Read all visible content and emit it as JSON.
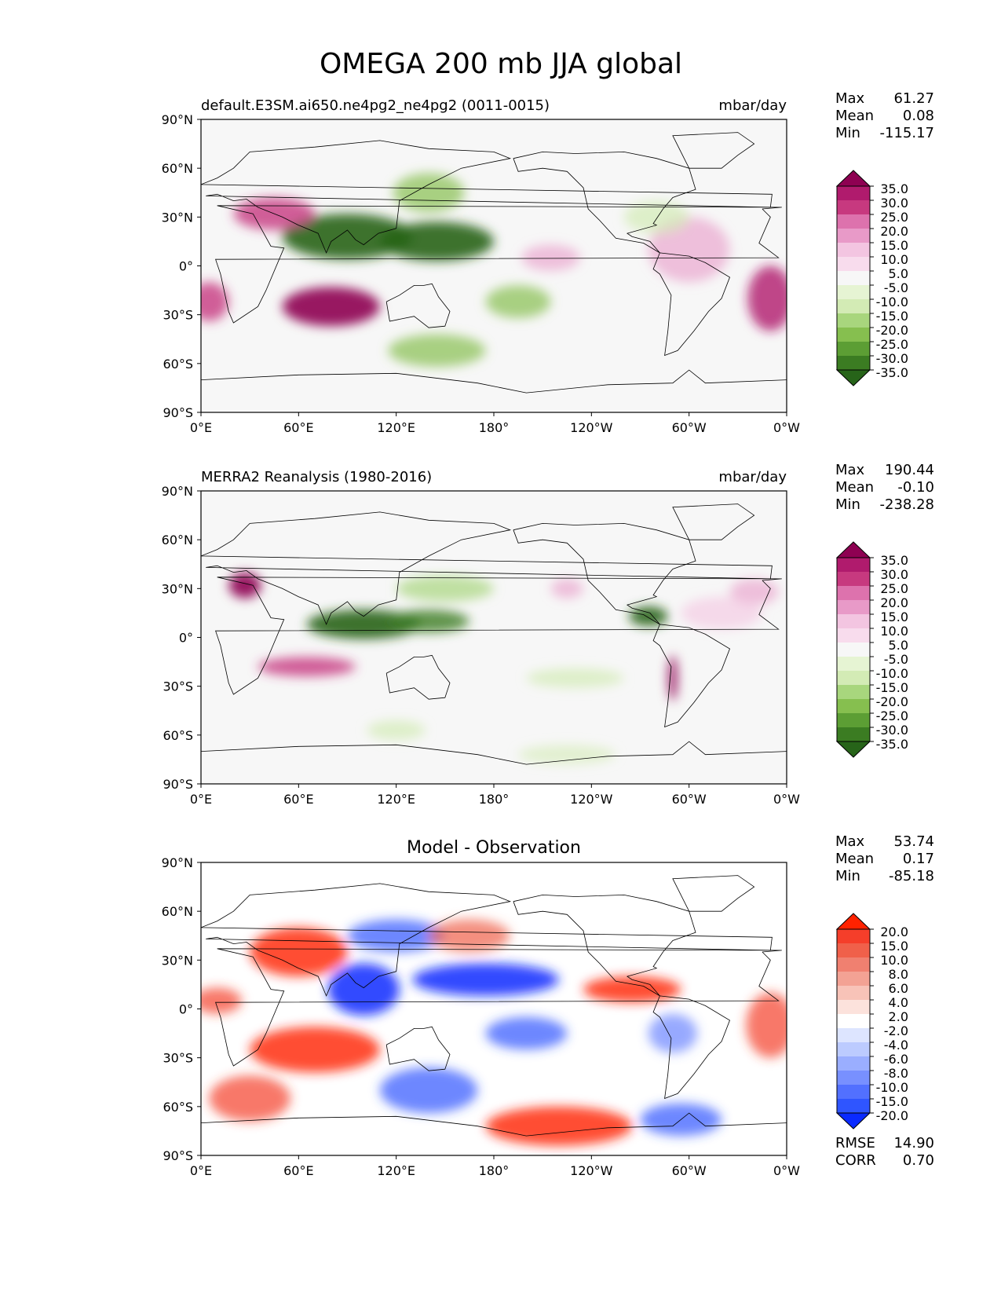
{
  "title": "OMEGA 200 mb JJA global",
  "chart_data": [
    {
      "type": "heatmap",
      "panel": "test",
      "left_title": "default.E3SM.ai650.ne4pg2_ne4pg2 (0011-0015)",
      "right_title": "mbar/day",
      "center_title": "",
      "stats": [
        {
          "label": "Max",
          "value": "61.27"
        },
        {
          "label": "Mean",
          "value": "0.08"
        },
        {
          "label": "Min",
          "value": "-115.17"
        }
      ],
      "extra_stats": [],
      "colorbar": {
        "levels": [
          "35.0",
          "30.0",
          "25.0",
          "20.0",
          "15.0",
          "10.0",
          "5.0",
          "-5.0",
          "-10.0",
          "-15.0",
          "-20.0",
          "-25.0",
          "-30.0",
          "-35.0"
        ],
        "colors": [
          "#8e0152",
          "#b01b6d",
          "#c7397f",
          "#dd72ad",
          "#e89ac8",
          "#f3c5e1",
          "#f8dced",
          "#f7f7f7",
          "#e6f4d3",
          "#d3ebb5",
          "#a8d67d",
          "#86bf4f",
          "#5c9e34",
          "#3b7c22",
          "#276419"
        ],
        "extend": "both"
      },
      "x_ticks": [
        "0°E",
        "60°E",
        "120°E",
        "180°",
        "120°W",
        "60°W",
        "0°W"
      ],
      "y_ticks": [
        "90°N",
        "60°N",
        "30°N",
        "0°",
        "30°S",
        "60°S",
        "90°S"
      ],
      "xlim": [
        0,
        360
      ],
      "ylim": [
        -90,
        90
      ],
      "features": [
        {
          "lon": 90,
          "lat": 18,
          "rx": 40,
          "ry": 14,
          "color": "#276419",
          "opacity": 0.9
        },
        {
          "lon": 145,
          "lat": 15,
          "rx": 35,
          "ry": 12,
          "color": "#276419",
          "opacity": 0.9
        },
        {
          "lon": 140,
          "lat": 45,
          "rx": 22,
          "ry": 12,
          "color": "#86bf4f",
          "opacity": 0.7
        },
        {
          "lon": 195,
          "lat": -22,
          "rx": 20,
          "ry": 10,
          "color": "#86bf4f",
          "opacity": 0.7
        },
        {
          "lon": 145,
          "lat": -52,
          "rx": 30,
          "ry": 10,
          "color": "#86bf4f",
          "opacity": 0.7
        },
        {
          "lon": 80,
          "lat": -25,
          "rx": 30,
          "ry": 12,
          "color": "#8e0152",
          "opacity": 0.9
        },
        {
          "lon": 45,
          "lat": 32,
          "rx": 25,
          "ry": 10,
          "color": "#c7397f",
          "opacity": 0.8
        },
        {
          "lon": 5,
          "lat": -22,
          "rx": 12,
          "ry": 12,
          "color": "#c7397f",
          "opacity": 0.8
        },
        {
          "lon": 350,
          "lat": -20,
          "rx": 14,
          "ry": 20,
          "color": "#b01b6d",
          "opacity": 0.8
        },
        {
          "lon": 300,
          "lat": 10,
          "rx": 25,
          "ry": 20,
          "color": "#e89ac8",
          "opacity": 0.6
        },
        {
          "lon": 215,
          "lat": 5,
          "rx": 18,
          "ry": 8,
          "color": "#e89ac8",
          "opacity": 0.6
        },
        {
          "lon": 280,
          "lat": 30,
          "rx": 20,
          "ry": 10,
          "color": "#d3ebb5",
          "opacity": 0.7
        }
      ]
    },
    {
      "type": "heatmap",
      "panel": "reference",
      "left_title": "MERRA2 Reanalysis (1980-2016)",
      "right_title": "mbar/day",
      "center_title": "",
      "stats": [
        {
          "label": "Max",
          "value": "190.44"
        },
        {
          "label": "Mean",
          "value": "-0.10"
        },
        {
          "label": "Min",
          "value": "-238.28"
        }
      ],
      "extra_stats": [],
      "colorbar": {
        "levels": [
          "35.0",
          "30.0",
          "25.0",
          "20.0",
          "15.0",
          "10.0",
          "5.0",
          "-5.0",
          "-10.0",
          "-15.0",
          "-20.0",
          "-25.0",
          "-30.0",
          "-35.0"
        ],
        "colors": [
          "#8e0152",
          "#b01b6d",
          "#c7397f",
          "#dd72ad",
          "#e89ac8",
          "#f3c5e1",
          "#f8dced",
          "#f7f7f7",
          "#e6f4d3",
          "#d3ebb5",
          "#a8d67d",
          "#86bf4f",
          "#5c9e34",
          "#3b7c22",
          "#276419"
        ],
        "extend": "both"
      },
      "x_ticks": [
        "0°E",
        "60°E",
        "120°E",
        "180°",
        "120°W",
        "60°W",
        "0°W"
      ],
      "y_ticks": [
        "90°N",
        "60°N",
        "30°N",
        "0°",
        "30°S",
        "60°S",
        "90°S"
      ],
      "xlim": [
        0,
        360
      ],
      "ylim": [
        -90,
        90
      ],
      "features": [
        {
          "lon": 100,
          "lat": 8,
          "rx": 35,
          "ry": 9,
          "color": "#276419",
          "opacity": 0.9
        },
        {
          "lon": 140,
          "lat": 10,
          "rx": 25,
          "ry": 7,
          "color": "#3b7c22",
          "opacity": 0.8
        },
        {
          "lon": 150,
          "lat": 30,
          "rx": 30,
          "ry": 8,
          "color": "#a8d67d",
          "opacity": 0.7
        },
        {
          "lon": 275,
          "lat": 13,
          "rx": 12,
          "ry": 6,
          "color": "#276419",
          "opacity": 0.9
        },
        {
          "lon": 27,
          "lat": 32,
          "rx": 10,
          "ry": 8,
          "color": "#8e0152",
          "opacity": 0.9
        },
        {
          "lon": 65,
          "lat": -18,
          "rx": 30,
          "ry": 6,
          "color": "#c7397f",
          "opacity": 0.8
        },
        {
          "lon": 290,
          "lat": -25,
          "rx": 3,
          "ry": 14,
          "color": "#8e0152",
          "opacity": 0.8
        },
        {
          "lon": 230,
          "lat": -25,
          "rx": 30,
          "ry": 6,
          "color": "#d3ebb5",
          "opacity": 0.7
        },
        {
          "lon": 120,
          "lat": -57,
          "rx": 18,
          "ry": 6,
          "color": "#d3ebb5",
          "opacity": 0.7
        },
        {
          "lon": 225,
          "lat": -72,
          "rx": 30,
          "ry": 6,
          "color": "#d3ebb5",
          "opacity": 0.6
        },
        {
          "lon": 225,
          "lat": 30,
          "rx": 10,
          "ry": 6,
          "color": "#e89ac8",
          "opacity": 0.6
        },
        {
          "lon": 340,
          "lat": 28,
          "rx": 15,
          "ry": 8,
          "color": "#e89ac8",
          "opacity": 0.6
        },
        {
          "lon": 320,
          "lat": 15,
          "rx": 25,
          "ry": 10,
          "color": "#f3c5e1",
          "opacity": 0.6
        }
      ]
    },
    {
      "type": "heatmap",
      "panel": "difference",
      "left_title": "",
      "right_title": "",
      "center_title": "Model - Observation",
      "stats": [
        {
          "label": "Max",
          "value": "53.74"
        },
        {
          "label": "Mean",
          "value": "0.17"
        },
        {
          "label": "Min",
          "value": "-85.18"
        }
      ],
      "extra_stats": [
        {
          "label": "RMSE",
          "value": "14.90"
        },
        {
          "label": "CORR",
          "value": "0.70"
        }
      ],
      "colorbar": {
        "levels": [
          "20.0",
          "15.0",
          "10.0",
          "8.0",
          "6.0",
          "4.0",
          "2.0",
          "-2.0",
          "-4.0",
          "-6.0",
          "-8.0",
          "-10.0",
          "-15.0",
          "-20.0"
        ],
        "colors": [
          "#ff2200",
          "#f53e2a",
          "#f0604a",
          "#f08070",
          "#f3a294",
          "#f8c3b8",
          "#fce2dc",
          "#ffffff",
          "#dde5ff",
          "#bccbff",
          "#9aaeff",
          "#7890ff",
          "#5270ff",
          "#2f55ff",
          "#0a2aff"
        ],
        "extend": "both"
      },
      "x_ticks": [
        "0°E",
        "60°E",
        "120°E",
        "180°",
        "120°W",
        "60°W",
        "0°W"
      ],
      "y_ticks": [
        "90°N",
        "60°N",
        "30°N",
        "0°",
        "30°S",
        "60°S",
        "90°S"
      ],
      "xlim": [
        0,
        360
      ],
      "ylim": [
        -90,
        90
      ],
      "features": [
        {
          "lon": 100,
          "lat": 12,
          "rx": 22,
          "ry": 16,
          "color": "#0a2aff",
          "opacity": 0.85
        },
        {
          "lon": 175,
          "lat": 18,
          "rx": 45,
          "ry": 10,
          "color": "#0a2aff",
          "opacity": 0.85
        },
        {
          "lon": 120,
          "lat": 45,
          "rx": 30,
          "ry": 10,
          "color": "#2f55ff",
          "opacity": 0.7
        },
        {
          "lon": 200,
          "lat": -15,
          "rx": 25,
          "ry": 10,
          "color": "#2f55ff",
          "opacity": 0.7
        },
        {
          "lon": 140,
          "lat": -50,
          "rx": 30,
          "ry": 14,
          "color": "#2f55ff",
          "opacity": 0.7
        },
        {
          "lon": 295,
          "lat": -68,
          "rx": 25,
          "ry": 10,
          "color": "#2f55ff",
          "opacity": 0.7
        },
        {
          "lon": 290,
          "lat": -15,
          "rx": 15,
          "ry": 12,
          "color": "#5270ff",
          "opacity": 0.6
        },
        {
          "lon": 60,
          "lat": 35,
          "rx": 30,
          "ry": 15,
          "color": "#ff2200",
          "opacity": 0.8
        },
        {
          "lon": 70,
          "lat": -25,
          "rx": 40,
          "ry": 14,
          "color": "#ff2200",
          "opacity": 0.8
        },
        {
          "lon": 30,
          "lat": -55,
          "rx": 25,
          "ry": 14,
          "color": "#f53e2a",
          "opacity": 0.7
        },
        {
          "lon": 220,
          "lat": -72,
          "rx": 45,
          "ry": 12,
          "color": "#ff2200",
          "opacity": 0.8
        },
        {
          "lon": 265,
          "lat": 12,
          "rx": 30,
          "ry": 8,
          "color": "#ff2200",
          "opacity": 0.8
        },
        {
          "lon": 350,
          "lat": -10,
          "rx": 15,
          "ry": 20,
          "color": "#f53e2a",
          "opacity": 0.7
        },
        {
          "lon": 10,
          "lat": 5,
          "rx": 15,
          "ry": 8,
          "color": "#f53e2a",
          "opacity": 0.7
        },
        {
          "lon": 165,
          "lat": 45,
          "rx": 25,
          "ry": 10,
          "color": "#f0604a",
          "opacity": 0.7
        }
      ]
    }
  ]
}
